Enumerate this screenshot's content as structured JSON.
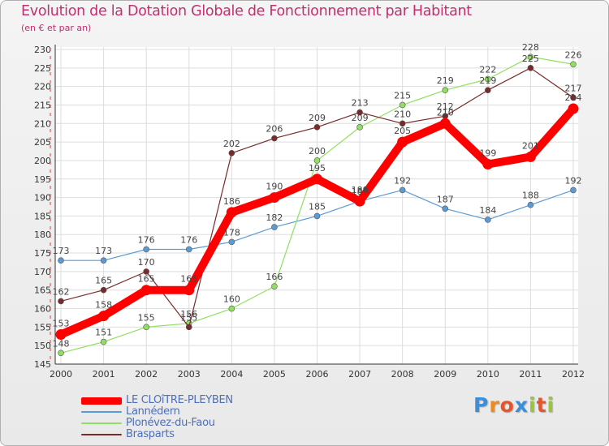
{
  "chart_data": {
    "type": "line",
    "title": "Evolution de la Dotation Globale de Fonctionnement par Habitant",
    "subtitle": "(en € et par an)",
    "xlabel": "",
    "ylabel": "",
    "x": [
      "2000",
      "2001",
      "2002",
      "2003",
      "2004",
      "2005",
      "2006",
      "2007",
      "2008",
      "2009",
      "2010",
      "2011",
      "2012"
    ],
    "ylim": [
      145,
      230
    ],
    "yticks": [
      145,
      150,
      155,
      160,
      165,
      170,
      175,
      180,
      185,
      190,
      195,
      200,
      205,
      210,
      215,
      220,
      225,
      230
    ],
    "grid": true,
    "legend_position": "bottom-left",
    "series": [
      {
        "name": "LE CLOîTRE-PLEYBEN",
        "color": "#ff0000",
        "values": [
          153,
          158,
          165,
          165,
          186,
          190,
          195,
          189,
          205,
          210,
          199,
          201,
          214
        ]
      },
      {
        "name": "Lannédern",
        "color": "#5b9bd5",
        "values": [
          173,
          173,
          176,
          176,
          178,
          182,
          185,
          189,
          192,
          187,
          184,
          188,
          192
        ]
      },
      {
        "name": "Plonévez-du-Faou",
        "color": "#90e060",
        "values": [
          148,
          151,
          155,
          156,
          160,
          166,
          200,
          209,
          215,
          219,
          222,
          228,
          226
        ]
      },
      {
        "name": "Brasparts",
        "color": "#7a2a2a",
        "values": [
          162,
          165,
          170,
          155,
          202,
          206,
          209,
          213,
          210,
          212,
          219,
          225,
          217
        ]
      }
    ]
  },
  "logo": {
    "letters": [
      "P",
      "r",
      "o",
      "x",
      "i",
      "t",
      "i"
    ],
    "colors": [
      "#3a8fd8",
      "#f08a1e",
      "#e8542a",
      "#3a8fd8",
      "#9bc43a",
      "#e8542a",
      "#9bc43a"
    ]
  }
}
